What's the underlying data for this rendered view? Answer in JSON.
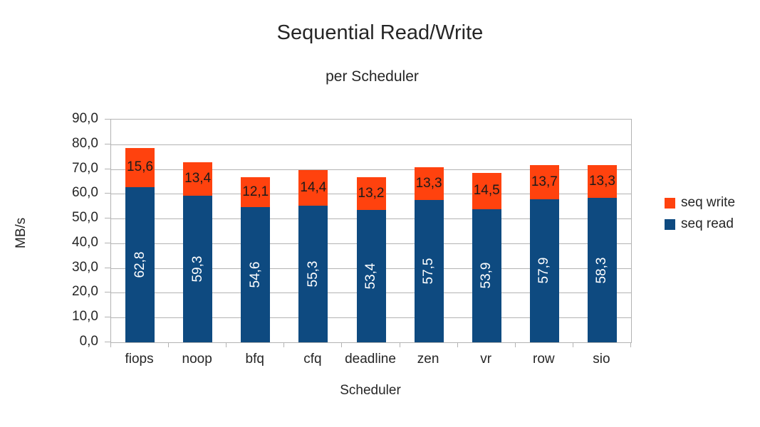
{
  "title": "Sequential Read/Write",
  "subtitle": "per Scheduler",
  "chart_data": {
    "type": "bar",
    "stacked": true,
    "title": "Sequential Read/Write",
    "subtitle": "per Scheduler",
    "xlabel": "Scheduler",
    "ylabel": "MB/s",
    "categories": [
      "fiops",
      "noop",
      "bfq",
      "cfq",
      "deadline",
      "zen",
      "vr",
      "row",
      "sio"
    ],
    "series": [
      {
        "name": "seq read",
        "color": "#0e4a80",
        "label_color": "#ffffff",
        "label_orientation": "vertical",
        "values": [
          62.8,
          59.3,
          54.6,
          55.3,
          53.4,
          57.5,
          53.9,
          57.9,
          58.3
        ],
        "labels": [
          "62,8",
          "59,3",
          "54,6",
          "55,3",
          "53,4",
          "57,5",
          "53,9",
          "57,9",
          "58,3"
        ]
      },
      {
        "name": "seq write",
        "color": "#ff420e",
        "label_color": "#1a1a1a",
        "label_orientation": "horizontal",
        "values": [
          15.6,
          13.4,
          12.1,
          14.4,
          13.2,
          13.3,
          14.5,
          13.7,
          13.3
        ],
        "labels": [
          "15,6",
          "13,4",
          "12,1",
          "14,4",
          "13,2",
          "13,3",
          "14,5",
          "13,7",
          "13,3"
        ]
      }
    ],
    "ylim": [
      0,
      90
    ],
    "ytick_step": 10,
    "ytick_labels": [
      "0,0",
      "10,0",
      "20,0",
      "30,0",
      "40,0",
      "50,0",
      "60,0",
      "70,0",
      "80,0",
      "90,0"
    ],
    "grid": true,
    "legend_position": "right",
    "legend_order": [
      "seq write",
      "seq read"
    ],
    "decimal_separator": ","
  },
  "colors": {
    "seq_write": "#ff420e",
    "seq_read": "#0e4a80",
    "gridline": "#b3b3b3",
    "text": "#262626",
    "background": "#ffffff"
  }
}
